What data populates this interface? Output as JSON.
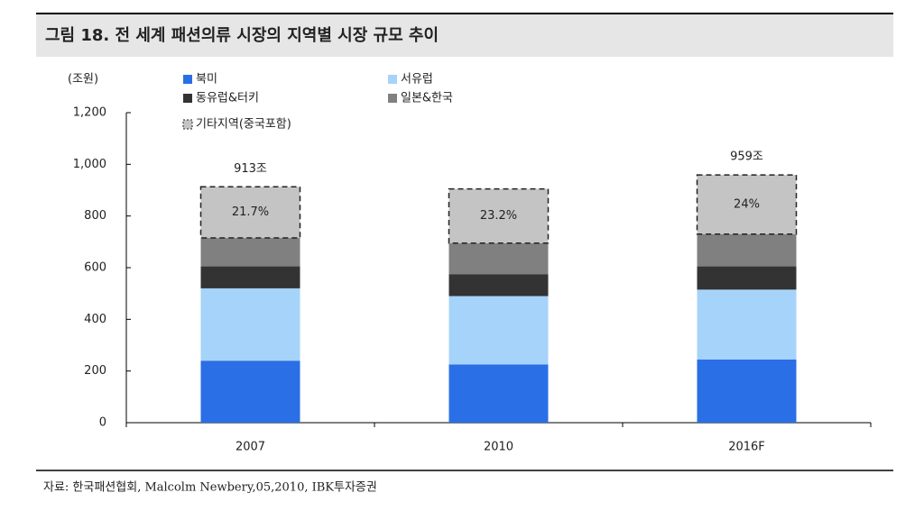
{
  "chart_data": {
    "type": "stacked_bar",
    "title": "그림 18. 전 세계 패션의류 시장의 지역별 시장 규모 추이",
    "y_label": "(조원)",
    "source": "자료: 한국패션협회, Malcolm Newbery,05,2010, IBK투자증권",
    "categories": [
      "2007",
      "2010",
      "2016F"
    ],
    "series": [
      {
        "name": "북미",
        "color": "#2a6fe6",
        "values": [
          240,
          225,
          245
        ]
      },
      {
        "name": "서유럽",
        "color": "#a6d3f9",
        "values": [
          280,
          265,
          270
        ]
      },
      {
        "name": "동유럽&터키",
        "color": "#333333",
        "values": [
          85,
          85,
          90
        ]
      },
      {
        "name": "일본&한국",
        "color": "#808080",
        "values": [
          110,
          120,
          125
        ]
      },
      {
        "name": "기타지역(중국포함)",
        "color": "#c4c4c4",
        "values": [
          198,
          210,
          229
        ],
        "value_labels": [
          "21.7%",
          "23.2%",
          "24%"
        ]
      }
    ],
    "total_labels": [
      "913조",
      null,
      "959조"
    ],
    "ylim": [
      0,
      1200
    ],
    "yticks": [
      0,
      200,
      400,
      600,
      800,
      {
        "value": 1000,
        "label": "1,000"
      },
      {
        "value": 1200,
        "label": "1,200"
      }
    ]
  }
}
